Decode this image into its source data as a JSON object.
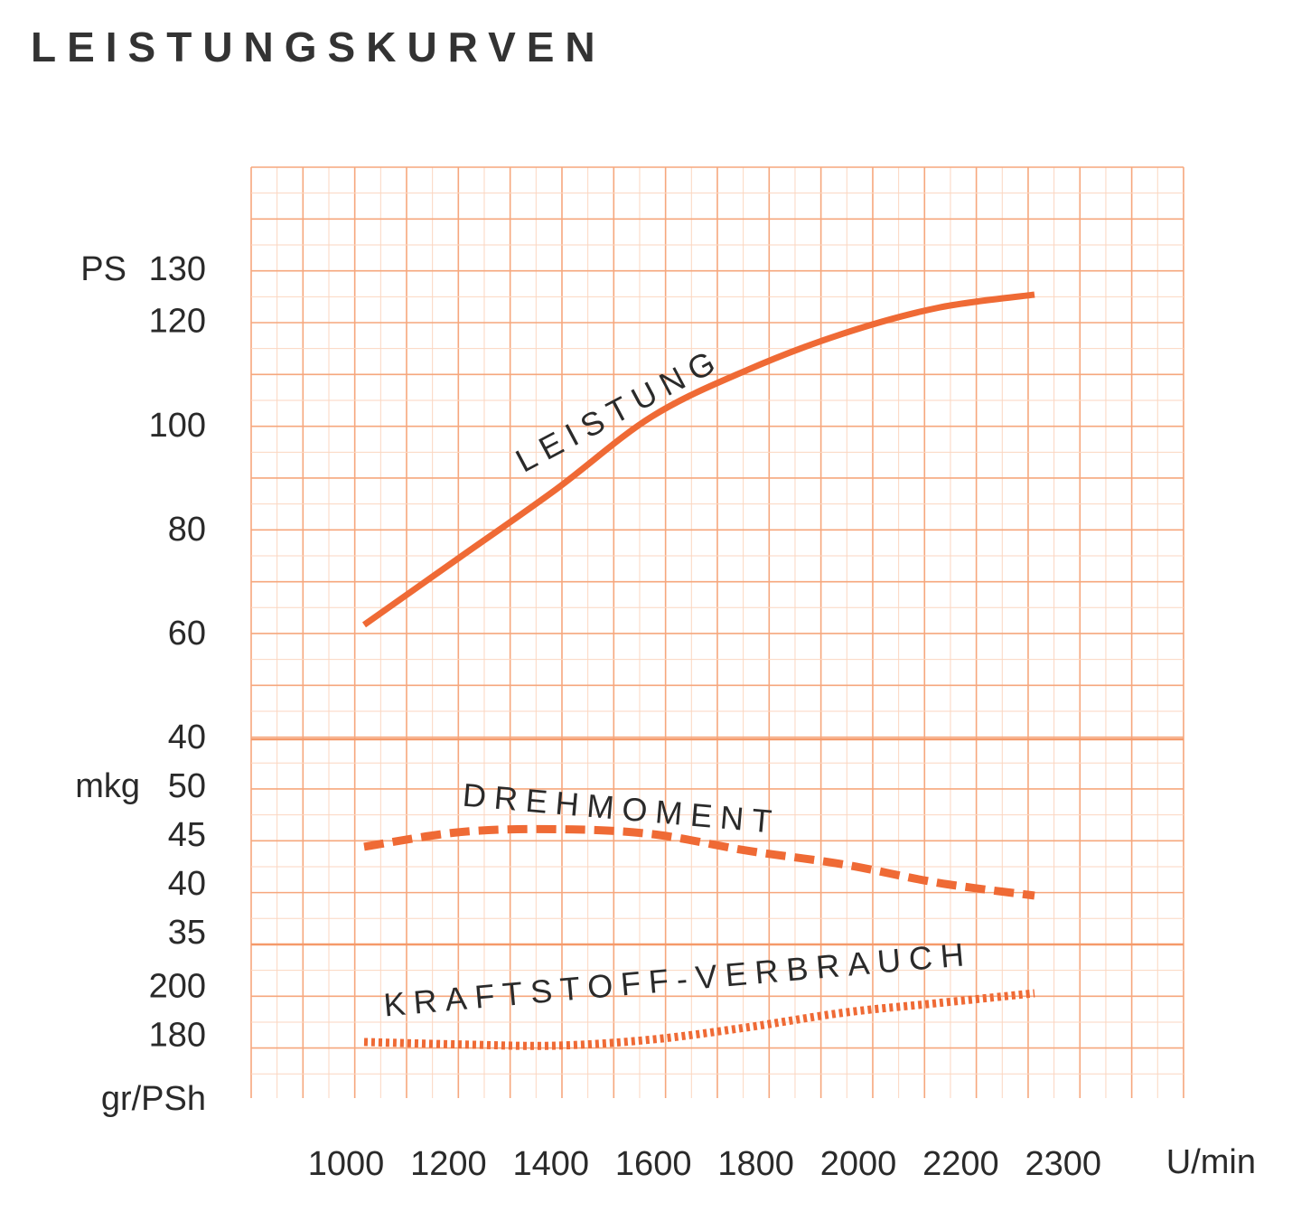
{
  "title": "LEISTUNGSKURVEN",
  "chart_data": [
    {
      "type": "line",
      "x_label": "U/min",
      "y_label": "PS",
      "categories": [
        "1000",
        "1200",
        "1400",
        "1600",
        "1800",
        "2000",
        "2200",
        "2300"
      ],
      "ylim": [
        40,
        150
      ],
      "yticks": [
        40,
        60,
        80,
        100,
        120,
        130
      ],
      "series": [
        {
          "name": "LEISTUNG",
          "color": "#ef6a35",
          "line_style": "solid",
          "values": [
            62,
            75,
            88,
            102,
            111,
            118,
            123,
            125.5
          ]
        }
      ]
    },
    {
      "type": "line",
      "y_label": "mkg",
      "ylim": [
        34,
        55
      ],
      "yticks": [
        35,
        40,
        45,
        50
      ],
      "series": [
        {
          "name": "DREHMOMENT",
          "color": "#ef6a35",
          "line_style": "dashed",
          "values": [
            44,
            45.5,
            45.8,
            45.3,
            43.6,
            42.2,
            40.3,
            39
          ]
        }
      ]
    },
    {
      "type": "line",
      "y_label": "gr/PSh",
      "ylim": [
        155,
        218
      ],
      "yticks": [
        180,
        200
      ],
      "series": [
        {
          "name": "KRAFTSTOFF-VERBRAUCH",
          "color": "#ef6a35",
          "line_style": "dotted",
          "values": [
            178,
            177,
            176.5,
            179,
            184,
            190,
            194,
            198
          ]
        }
      ]
    }
  ]
}
